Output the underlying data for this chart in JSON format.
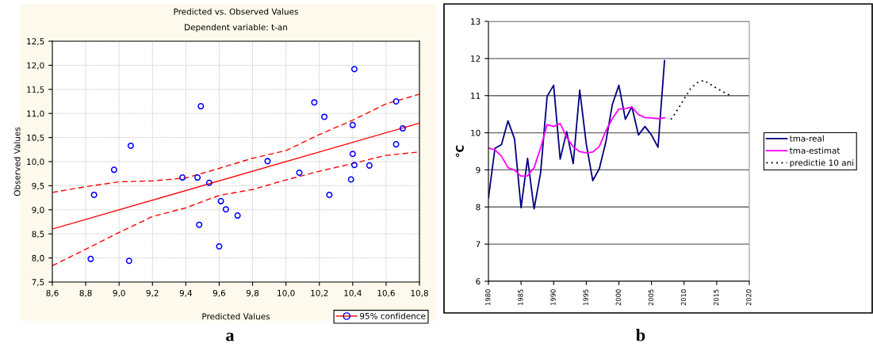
{
  "chart_data": [
    {
      "type": "scatter",
      "title": "Predicted vs. Observed Values",
      "subtitle": "Dependent variable: t-an",
      "xlabel": "Predicted Values",
      "ylabel": "Observed Values",
      "xlim": [
        8.6,
        10.8
      ],
      "ylim": [
        7.5,
        12.5
      ],
      "xticks": [
        {
          "value": 8.6,
          "label": "8,6"
        },
        {
          "value": 8.8,
          "label": "8,8"
        },
        {
          "value": 9.0,
          "label": "9,0"
        },
        {
          "value": 9.2,
          "label": "9,2"
        },
        {
          "value": 9.4,
          "label": "9,4"
        },
        {
          "value": 9.6,
          "label": "9,6"
        },
        {
          "value": 9.8,
          "label": "9,8"
        },
        {
          "value": 10.0,
          "label": "10,0"
        },
        {
          "value": 10.2,
          "label": "10,2"
        },
        {
          "value": 10.4,
          "label": "10,4"
        },
        {
          "value": 10.6,
          "label": "10,6"
        },
        {
          "value": 10.8,
          "label": "10,8"
        }
      ],
      "yticks": [
        {
          "value": 7.5,
          "label": "7,5"
        },
        {
          "value": 8.0,
          "label": "8,0"
        },
        {
          "value": 8.5,
          "label": "8,5"
        },
        {
          "value": 9.0,
          "label": "9,0"
        },
        {
          "value": 9.5,
          "label": "9,5"
        },
        {
          "value": 10.0,
          "label": "10,0"
        },
        {
          "value": 10.5,
          "label": "10,5"
        },
        {
          "value": 11.0,
          "label": "11,0"
        },
        {
          "value": 11.5,
          "label": "11,5"
        },
        {
          "value": 12.0,
          "label": "12,0"
        },
        {
          "value": 12.5,
          "label": "12,5"
        }
      ],
      "grid": true,
      "legend": "bottom right",
      "marker": "circle",
      "series": [
        {
          "name": "95% confidence",
          "type": "scatter",
          "color": "#0000ff",
          "x": [
            8.85,
            8.83,
            8.97,
            9.07,
            9.06,
            9.38,
            9.47,
            9.49,
            9.54,
            9.48,
            9.61,
            9.64,
            9.6,
            9.71,
            9.89,
            10.08,
            10.17,
            10.23,
            10.26,
            10.41,
            10.4,
            10.4,
            10.41,
            10.39,
            10.5,
            10.66,
            10.66,
            10.7
          ],
          "values": [
            9.31,
            7.98,
            9.83,
            10.33,
            7.94,
            9.67,
            9.67,
            11.15,
            9.56,
            8.69,
            9.18,
            9.01,
            8.24,
            8.88,
            10.01,
            9.77,
            11.23,
            10.93,
            9.31,
            11.92,
            10.76,
            10.16,
            9.93,
            9.63,
            9.92,
            11.25,
            10.36,
            10.69
          ]
        },
        {
          "type": "line",
          "color": "#ff0000",
          "line_style": "solid",
          "marker": "none",
          "x": [
            8.6,
            10.8
          ],
          "values": [
            8.6,
            10.8
          ]
        },
        {
          "type": "line",
          "color": "#ff0000",
          "line_style": "dashed",
          "marker": "none",
          "x": [
            8.6,
            8.8,
            9.0,
            9.2,
            9.4,
            9.6,
            9.8,
            10.0,
            10.2,
            10.4,
            10.6,
            10.8
          ],
          "values": [
            9.36,
            9.48,
            9.58,
            9.6,
            9.66,
            9.86,
            10.07,
            10.23,
            10.56,
            10.86,
            11.2,
            11.4
          ]
        },
        {
          "type": "line",
          "color": "#ff0000",
          "line_style": "dashed",
          "marker": "none",
          "x": [
            8.6,
            8.8,
            9.0,
            9.2,
            9.4,
            9.6,
            9.8,
            10.0,
            10.2,
            10.4,
            10.6,
            10.8
          ],
          "values": [
            7.84,
            8.18,
            8.53,
            8.86,
            9.04,
            9.3,
            9.42,
            9.62,
            9.8,
            9.96,
            10.13,
            10.2
          ]
        }
      ],
      "annotations": [
        "a"
      ]
    },
    {
      "type": "line",
      "ylabel": "°C",
      "xlim": [
        1980,
        2020
      ],
      "ylim": [
        6,
        13
      ],
      "xticks": [
        1980,
        1985,
        1990,
        1995,
        2000,
        2005,
        2010,
        2015,
        2020
      ],
      "yticks": [
        6,
        7,
        8,
        9,
        10,
        11,
        12,
        13
      ],
      "grid": "y",
      "legend": "right",
      "marker": "none",
      "series": [
        {
          "name": "tma-real",
          "color": "#000080",
          "line_style": "solid",
          "x": [
            1980,
            1981,
            1982,
            1983,
            1984,
            1985,
            1986,
            1987,
            1988,
            1989,
            1990,
            1991,
            1992,
            1993,
            1994,
            1995,
            1996,
            1997,
            1998,
            1999,
            2000,
            2001,
            2002,
            2003,
            2004,
            2005,
            2006,
            2007
          ],
          "values": [
            8.24,
            9.58,
            9.68,
            10.32,
            9.84,
            7.98,
            9.31,
            7.95,
            8.92,
            10.98,
            11.28,
            9.29,
            10.03,
            9.17,
            11.15,
            9.7,
            8.71,
            9.03,
            9.75,
            10.76,
            11.28,
            10.36,
            10.7,
            9.94,
            10.17,
            9.94,
            9.61,
            11.94
          ]
        },
        {
          "name": "tma-estimat",
          "color": "#ff00ff",
          "line_style": "solid",
          "x": [
            1980,
            1981,
            1982,
            1983,
            1984,
            1985,
            1986,
            1987,
            1988,
            1989,
            1990,
            1991,
            1992,
            1993,
            1994,
            1995,
            1996,
            1997,
            1998,
            1999,
            2000,
            2001,
            2002,
            2003,
            2004,
            2005,
            2006,
            2007
          ],
          "values": [
            9.59,
            9.54,
            9.37,
            9.06,
            8.99,
            8.83,
            8.84,
            9.06,
            9.59,
            10.22,
            10.17,
            10.25,
            9.88,
            9.62,
            9.49,
            9.46,
            9.48,
            9.63,
            10.05,
            10.38,
            10.64,
            10.65,
            10.69,
            10.49,
            10.41,
            10.4,
            10.38,
            10.4
          ]
        },
        {
          "name": "predictie 10 ani",
          "color": "#000000",
          "line_style": "dotted",
          "x": [
            2008,
            2009,
            2010,
            2011,
            2012,
            2013,
            2014,
            2015,
            2016,
            2017
          ],
          "values": [
            10.36,
            10.62,
            10.91,
            11.19,
            11.35,
            11.41,
            11.31,
            11.2,
            11.1,
            11.01
          ]
        }
      ],
      "annotations": [
        "b"
      ]
    }
  ]
}
